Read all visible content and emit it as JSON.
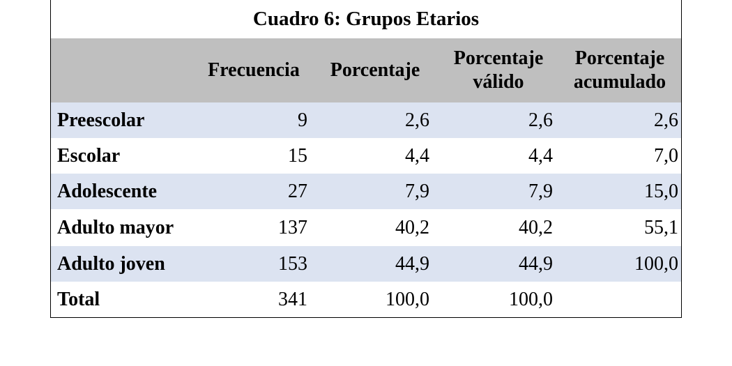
{
  "title": "Cuadro 6: Grupos Etarios",
  "headers": {
    "frecuencia": "Frecuencia",
    "porcentaje": "Porcentaje",
    "porcentaje_valido_1": "Porcentaje",
    "porcentaje_valido_2": "válido",
    "porcentaje_acumulado_1": "Porcentaje",
    "porcentaje_acumulado_2": "acumulado"
  },
  "rows": [
    {
      "label": "Preescolar",
      "frecuencia": "9",
      "porcentaje": "2,6",
      "valido": "2,6",
      "acumulado": "2,6"
    },
    {
      "label": "Escolar",
      "frecuencia": "15",
      "porcentaje": "4,4",
      "valido": "4,4",
      "acumulado": "7,0"
    },
    {
      "label": "Adolescente",
      "frecuencia": "27",
      "porcentaje": "7,9",
      "valido": "7,9",
      "acumulado": "15,0"
    },
    {
      "label": "Adulto mayor",
      "frecuencia": "137",
      "porcentaje": "40,2",
      "valido": "40,2",
      "acumulado": "55,1"
    },
    {
      "label": "Adulto joven",
      "frecuencia": "153",
      "porcentaje": "44,9",
      "valido": "44,9",
      "acumulado": "100,0"
    },
    {
      "label": "Total",
      "frecuencia": "341",
      "porcentaje": "100,0",
      "valido": "100,0",
      "acumulado": ""
    }
  ],
  "colors": {
    "header_bg": "#bfbfbf",
    "shaded_row_bg": "#dce3f1",
    "border": "#000000"
  }
}
